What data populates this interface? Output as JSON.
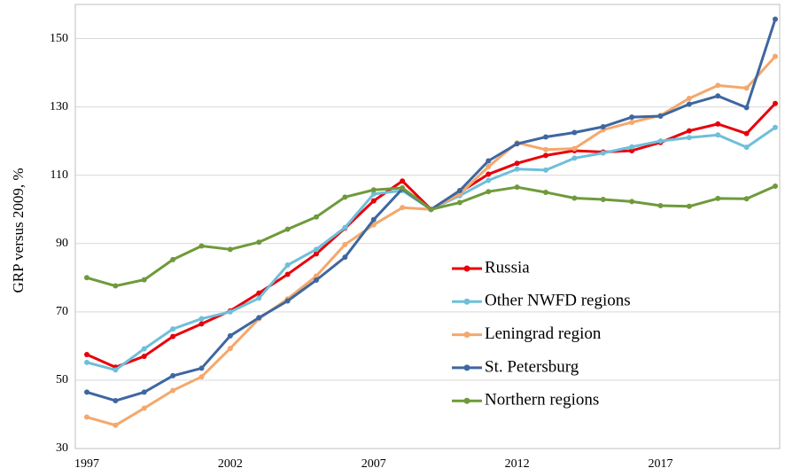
{
  "chart_data": {
    "type": "line",
    "y_label": "GRP versus 2009, %",
    "x": [
      1997,
      1998,
      1999,
      2000,
      2001,
      2002,
      2003,
      2004,
      2005,
      2006,
      2007,
      2008,
      2009,
      2010,
      2011,
      2012,
      2013,
      2014,
      2015,
      2016,
      2017,
      2018,
      2019,
      2020,
      2021
    ],
    "xlim": [
      1997,
      2021
    ],
    "xticks": [
      1997,
      2002,
      2007,
      2012,
      2017
    ],
    "ylim": [
      30,
      160
    ],
    "yticks": [
      30,
      50,
      70,
      90,
      110,
      130,
      150
    ],
    "grid": true,
    "legend": "center",
    "series": [
      {
        "name": "Russia",
        "color": "#e8000b",
        "values": [
          57.5,
          53.8,
          57,
          62.8,
          66.5,
          70.3,
          75.5,
          81,
          87,
          94.5,
          102.5,
          108.3,
          100,
          105,
          110.3,
          113.5,
          115.8,
          117.2,
          116.8,
          117.2,
          119.6,
          123,
          125,
          122.2,
          131
        ]
      },
      {
        "name": "Other NWFD regions",
        "color": "#6fbfd9",
        "values": [
          55.2,
          53,
          59.2,
          65,
          68,
          70,
          74,
          83.7,
          88.3,
          94.7,
          104.5,
          105.5,
          100,
          104,
          108.5,
          111.8,
          111.5,
          115,
          116.5,
          118.3,
          120,
          121,
          121.8,
          118.2,
          124
        ]
      },
      {
        "name": "Leningrad region",
        "color": "#f4a86c",
        "values": [
          39.2,
          36.8,
          41.8,
          47,
          51,
          59.3,
          68,
          73.8,
          80.5,
          89.7,
          95.5,
          100.5,
          100,
          104.5,
          112.5,
          119.5,
          117.5,
          117.8,
          123.3,
          125.5,
          127.5,
          132.5,
          136.3,
          135.5,
          144.8
        ]
      },
      {
        "name": "St. Petersburg",
        "color": "#3e67a0",
        "values": [
          46.5,
          44,
          46.5,
          51.3,
          53.5,
          63,
          68.3,
          73.2,
          79.3,
          86,
          97,
          106,
          100,
          105.5,
          114.2,
          119.2,
          121.2,
          122.5,
          124.2,
          127,
          127.3,
          130.8,
          133.2,
          129.8,
          155.7
        ]
      },
      {
        "name": "Northern regions",
        "color": "#6f9a3b",
        "values": [
          80,
          77.6,
          79.4,
          85.3,
          89.3,
          88.3,
          90.4,
          94.2,
          97.8,
          103.6,
          105.7,
          106.3,
          100,
          102,
          105.2,
          106.5,
          105,
          103.3,
          102.9,
          102.3,
          101.1,
          100.9,
          103.2,
          103.1,
          106.8
        ]
      }
    ]
  }
}
